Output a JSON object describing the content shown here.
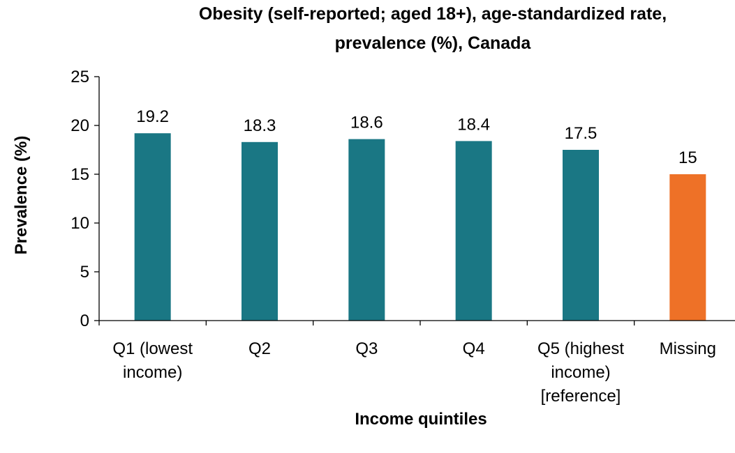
{
  "chart_data": {
    "type": "bar",
    "title": "Obesity (self-reported; aged 18+), age-standardized rate, prevalence (%), Canada",
    "title_lines": [
      "Obesity (self-reported; aged 18+), age-standardized rate,",
      "prevalence (%), Canada"
    ],
    "xlabel": "Income quintiles",
    "ylabel": "Prevalence (%)",
    "ylim": [
      0,
      25
    ],
    "yticks": [
      0,
      5,
      10,
      15,
      20,
      25
    ],
    "categories": [
      [
        "Q1 (lowest",
        "income)"
      ],
      [
        "Q2"
      ],
      [
        "Q3"
      ],
      [
        "Q4"
      ],
      [
        "Q5 (highest",
        "income)",
        "[reference]"
      ],
      [
        "Missing"
      ]
    ],
    "values": [
      19.2,
      18.3,
      18.6,
      18.4,
      17.5,
      15
    ],
    "value_labels": [
      "19.2",
      "18.3",
      "18.6",
      "18.4",
      "17.5",
      "15"
    ],
    "colors": [
      "#1a7784",
      "#1a7784",
      "#1a7784",
      "#1a7784",
      "#1a7784",
      "#ee7127"
    ],
    "grid": false,
    "legend": "none"
  }
}
